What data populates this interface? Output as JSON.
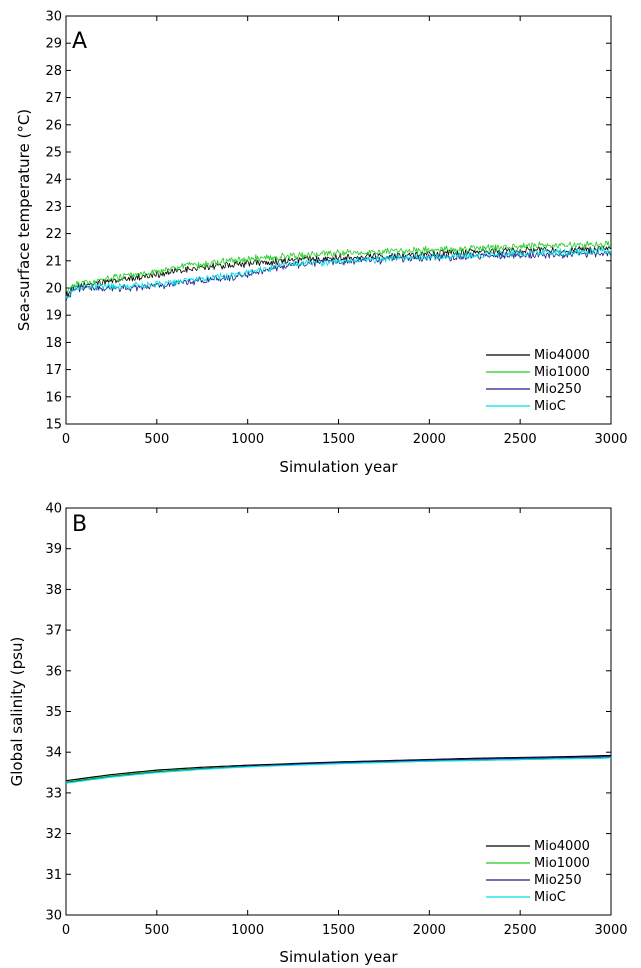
{
  "chart_data": [
    {
      "type": "line",
      "panel_label": "A",
      "title": "",
      "xlabel": "Simulation year",
      "ylabel": "Sea-surface temperature (°C)",
      "xlim": [
        0,
        3000
      ],
      "ylim": [
        15,
        30
      ],
      "xticks": [
        "0",
        "500",
        "1000",
        "1500",
        "2000",
        "2500",
        "3000"
      ],
      "yticks": [
        "15",
        "16",
        "17",
        "18",
        "19",
        "20",
        "21",
        "22",
        "23",
        "24",
        "25",
        "26",
        "27",
        "28",
        "29",
        "30"
      ],
      "grid": false,
      "legend_position": "bottom-right",
      "noisy": true,
      "series": [
        {
          "name": "Mio4000",
          "color": "#000000",
          "x": [
            0,
            20,
            50,
            100,
            200,
            300,
            400,
            500,
            600,
            700,
            800,
            900,
            1000,
            1200,
            1400,
            1600,
            1800,
            2000,
            2200,
            2400,
            2600,
            2800,
            3000
          ],
          "y": [
            19.7,
            19.9,
            20.0,
            20.1,
            20.2,
            20.3,
            20.4,
            20.5,
            20.6,
            20.7,
            20.8,
            20.85,
            20.9,
            21.0,
            21.1,
            21.15,
            21.2,
            21.25,
            21.3,
            21.35,
            21.4,
            21.4,
            21.45
          ]
        },
        {
          "name": "Mio1000",
          "color": "#22cc22",
          "x": [
            0,
            20,
            50,
            100,
            200,
            300,
            400,
            500,
            600,
            700,
            800,
            900,
            1000,
            1200,
            1400,
            1600,
            1800,
            2000,
            2200,
            2400,
            2600,
            2800,
            3000
          ],
          "y": [
            19.8,
            20.0,
            20.1,
            20.15,
            20.3,
            20.4,
            20.5,
            20.6,
            20.75,
            20.85,
            20.9,
            21.0,
            21.05,
            21.15,
            21.25,
            21.3,
            21.35,
            21.4,
            21.45,
            21.5,
            21.55,
            21.6,
            21.6
          ]
        },
        {
          "name": "Mio250",
          "color": "#1c1c8c",
          "x": [
            0,
            20,
            50,
            100,
            200,
            300,
            400,
            500,
            600,
            700,
            800,
            900,
            1000,
            1200,
            1400,
            1600,
            1800,
            2000,
            2200,
            2400,
            2600,
            2800,
            3000
          ],
          "y": [
            19.5,
            19.8,
            19.95,
            20.0,
            20.0,
            20.0,
            20.05,
            20.1,
            20.15,
            20.25,
            20.3,
            20.4,
            20.5,
            20.8,
            20.95,
            21.0,
            21.05,
            21.1,
            21.15,
            21.2,
            21.2,
            21.25,
            21.25
          ]
        },
        {
          "name": "MioC",
          "color": "#00e0e0",
          "x": [
            0,
            20,
            50,
            100,
            200,
            300,
            400,
            500,
            600,
            700,
            800,
            900,
            1000,
            1200,
            1400,
            1600,
            1800,
            2000,
            2200,
            2400,
            2600,
            2800,
            3000
          ],
          "y": [
            19.6,
            19.85,
            20.0,
            20.05,
            20.05,
            20.05,
            20.1,
            20.15,
            20.2,
            20.3,
            20.35,
            20.45,
            20.55,
            20.85,
            20.95,
            21.0,
            21.1,
            21.15,
            21.2,
            21.25,
            21.3,
            21.3,
            21.35
          ]
        }
      ]
    },
    {
      "type": "line",
      "panel_label": "B",
      "title": "",
      "xlabel": "Simulation year",
      "ylabel": "Global salinity (psu)",
      "xlim": [
        0,
        3000
      ],
      "ylim": [
        30,
        40
      ],
      "xticks": [
        "0",
        "500",
        "1000",
        "1500",
        "2000",
        "2500",
        "3000"
      ],
      "yticks": [
        "30",
        "31",
        "32",
        "33",
        "34",
        "35",
        "36",
        "37",
        "38",
        "39",
        "40"
      ],
      "grid": false,
      "legend_position": "bottom-right",
      "noisy": false,
      "series": [
        {
          "name": "Mio4000",
          "color": "#000000",
          "x": [
            0,
            250,
            500,
            750,
            1000,
            1250,
            1500,
            1750,
            2000,
            2250,
            2500,
            2750,
            3000
          ],
          "y": [
            33.3,
            33.45,
            33.56,
            33.63,
            33.68,
            33.72,
            33.76,
            33.79,
            33.82,
            33.85,
            33.87,
            33.89,
            33.92
          ]
        },
        {
          "name": "Mio1000",
          "color": "#22cc22",
          "x": [
            0,
            250,
            500,
            750,
            1000,
            1250,
            1500,
            1750,
            2000,
            2250,
            2500,
            2750,
            3000
          ],
          "y": [
            33.27,
            33.42,
            33.53,
            33.6,
            33.65,
            33.69,
            33.72,
            33.75,
            33.78,
            33.8,
            33.82,
            33.84,
            33.86
          ]
        },
        {
          "name": "Mio250",
          "color": "#1c1c8c",
          "x": [
            0,
            250,
            500,
            750,
            1000,
            1250,
            1500,
            1750,
            2000,
            2250,
            2500,
            2750,
            3000
          ],
          "y": [
            33.25,
            33.4,
            33.51,
            33.59,
            33.65,
            33.7,
            33.74,
            33.77,
            33.8,
            33.83,
            33.85,
            33.87,
            33.89
          ]
        },
        {
          "name": "MioC",
          "color": "#00e0e0",
          "x": [
            0,
            250,
            500,
            750,
            1000,
            1250,
            1500,
            1750,
            2000,
            2250,
            2500,
            2750,
            3000
          ],
          "y": [
            33.24,
            33.39,
            33.5,
            33.58,
            33.64,
            33.68,
            33.72,
            33.75,
            33.78,
            33.8,
            33.82,
            33.84,
            33.86
          ]
        }
      ]
    }
  ]
}
